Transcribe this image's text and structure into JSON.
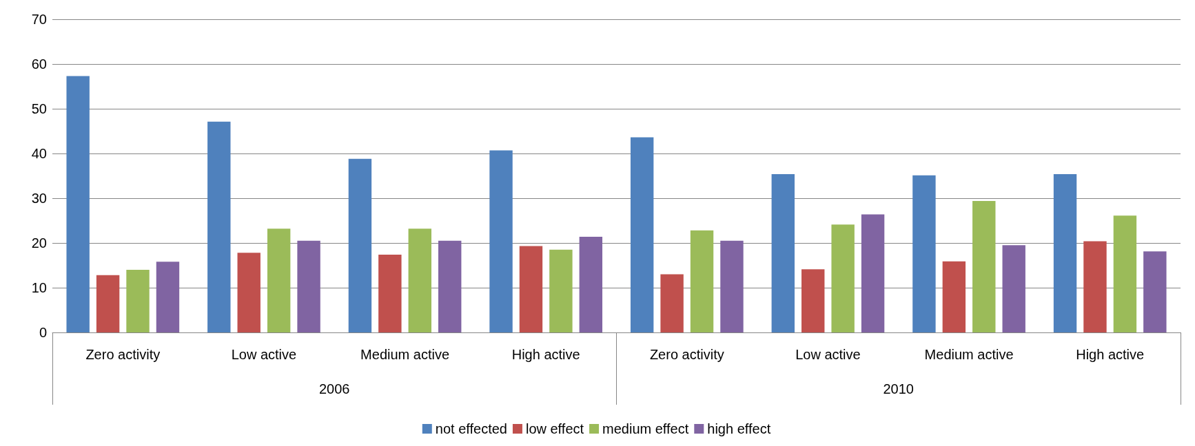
{
  "chart_data": {
    "type": "bar",
    "categories": [
      "Zero activity",
      "Low active",
      "Medium active",
      "High active",
      "Zero activity",
      "Low active",
      "Medium active",
      "High active"
    ],
    "annotations": [
      "2006",
      "2010"
    ],
    "series": [
      {
        "name": "not effected",
        "color": "#4f81bd",
        "values": [
          57.3,
          47.1,
          38.8,
          40.7,
          43.6,
          35.4,
          35.1,
          35.4
        ]
      },
      {
        "name": "low effect",
        "color": "#c0504d",
        "values": [
          12.8,
          17.8,
          17.4,
          19.3,
          13.0,
          14.1,
          15.9,
          20.4
        ]
      },
      {
        "name": "medium effect",
        "color": "#9bbb59",
        "values": [
          14.0,
          23.2,
          23.2,
          18.5,
          22.8,
          24.1,
          29.4,
          26.1
        ]
      },
      {
        "name": "high effect",
        "color": "#8064a2",
        "values": [
          15.8,
          20.5,
          20.5,
          21.4,
          20.5,
          26.4,
          19.5,
          18.1
        ]
      }
    ],
    "ylim": [
      0,
      70
    ],
    "yticks": [
      0,
      10,
      20,
      30,
      40,
      50,
      60,
      70
    ],
    "grid": "y",
    "legend": "bottom"
  }
}
